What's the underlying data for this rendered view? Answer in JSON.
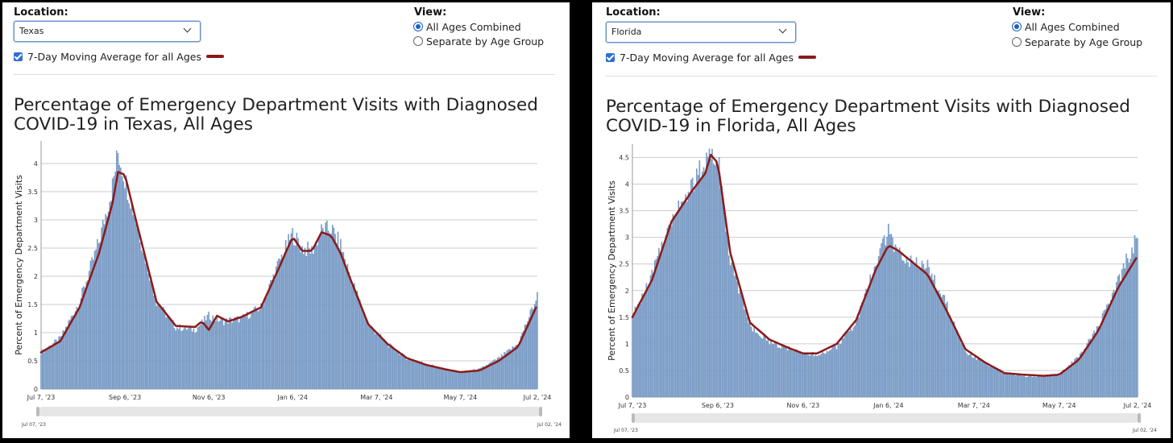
{
  "controls": {
    "location_label": "Location:",
    "view_label": "View:",
    "view_options": [
      "All Ages Combined",
      "Separate by Age Group"
    ],
    "moving_avg_label": "7-Day Moving Average for all Ages",
    "moving_avg_color": "#8b1a1a",
    "bar_color": "#7a9cc6"
  },
  "panels": [
    {
      "location": "Texas",
      "title_line1": "Percentage of Emergency Department Visits with Diagnosed",
      "title_line2": "COVID-19 in Texas, All Ages",
      "ylabel": "Percent of Emergency Department Visits",
      "xticks": [
        "Jul 7, '23",
        "Sep 6, '23",
        "Nov 6, '23",
        "Jan 6, '24",
        "Mar 7, '24",
        "May 7, '24",
        "Jul 2, '24"
      ],
      "range_start": "Jul 07, '23",
      "range_end": "Jul 02, '24"
    },
    {
      "location": "Florida",
      "title_line1": "Percentage of Emergency Department Visits with Diagnosed",
      "title_line2": "COVID-19 in Florida, All Ages",
      "ylabel": "Percent of Emergency Department Visits",
      "xticks": [
        "Jul 7, '23",
        "Sep 6, '23",
        "Nov 6, '23",
        "Jan 6, '24",
        "Mar 7, '24",
        "May 7, '24",
        "Jul 2, '24"
      ],
      "range_start": "Jul 07, '23",
      "range_end": "Jul 02, '24"
    }
  ],
  "chart_data": [
    {
      "type": "bar",
      "title": "Percentage of Emergency Department Visits with Diagnosed COVID-19 in Texas, All Ages",
      "xlabel": "",
      "ylabel": "Percent of Emergency Department Visits",
      "x_range": [
        "2023-07-07",
        "2024-07-02"
      ],
      "ylim": [
        0,
        4.4
      ],
      "yticks": [
        0,
        0.5,
        1,
        1.5,
        2,
        2.5,
        3,
        3.5,
        4
      ],
      "grid": true,
      "series": [
        {
          "kind": "bar",
          "dates": [
            "2023-07-07",
            "2023-07-21",
            "2023-08-04",
            "2023-08-18",
            "2023-08-28",
            "2023-09-01",
            "2023-09-06",
            "2023-09-15",
            "2023-09-29",
            "2023-10-13",
            "2023-10-27",
            "2023-11-06",
            "2023-11-16",
            "2023-11-30",
            "2023-12-14",
            "2023-12-28",
            "2024-01-06",
            "2024-01-13",
            "2024-01-20",
            "2024-01-27",
            "2024-02-03",
            "2024-02-10",
            "2024-02-17",
            "2024-03-01",
            "2024-03-15",
            "2024-03-29",
            "2024-04-12",
            "2024-04-26",
            "2024-05-07",
            "2024-05-21",
            "2024-06-04",
            "2024-06-18",
            "2024-07-02"
          ],
          "values": [
            0.65,
            0.9,
            1.55,
            2.6,
            3.6,
            4.2,
            3.75,
            2.9,
            1.55,
            1.1,
            1.05,
            1.3,
            1.2,
            1.25,
            1.45,
            2.3,
            2.75,
            2.5,
            2.45,
            2.8,
            2.85,
            2.55,
            2.0,
            1.15,
            0.8,
            0.55,
            0.45,
            0.35,
            0.3,
            0.35,
            0.55,
            0.8,
            1.65
          ]
        },
        {
          "kind": "line",
          "name": "7-Day Moving Average for all Ages",
          "dates": [
            "2023-07-07",
            "2023-07-21",
            "2023-08-04",
            "2023-08-18",
            "2023-08-28",
            "2023-09-01",
            "2023-09-06",
            "2023-09-15",
            "2023-09-29",
            "2023-10-13",
            "2023-10-27",
            "2023-11-01",
            "2023-11-06",
            "2023-11-12",
            "2023-11-20",
            "2023-11-30",
            "2023-12-14",
            "2023-12-28",
            "2024-01-06",
            "2024-01-13",
            "2024-01-20",
            "2024-01-27",
            "2024-02-03",
            "2024-02-10",
            "2024-02-17",
            "2024-03-01",
            "2024-03-15",
            "2024-03-29",
            "2024-04-12",
            "2024-04-26",
            "2024-05-07",
            "2024-05-21",
            "2024-06-04",
            "2024-06-18",
            "2024-07-02"
          ],
          "values": [
            0.65,
            0.85,
            1.45,
            2.4,
            3.3,
            3.85,
            3.8,
            2.9,
            1.55,
            1.12,
            1.1,
            1.2,
            1.05,
            1.3,
            1.2,
            1.28,
            1.45,
            2.2,
            2.7,
            2.45,
            2.45,
            2.78,
            2.72,
            2.4,
            1.95,
            1.15,
            0.8,
            0.55,
            0.43,
            0.35,
            0.3,
            0.33,
            0.5,
            0.75,
            1.5
          ]
        }
      ]
    },
    {
      "type": "bar",
      "title": "Percentage of Emergency Department Visits with Diagnosed COVID-19 in Florida, All Ages",
      "xlabel": "",
      "ylabel": "Percent of Emergency Department Visits",
      "x_range": [
        "2023-07-07",
        "2024-07-02"
      ],
      "ylim": [
        0,
        4.75
      ],
      "yticks": [
        0,
        0.5,
        1,
        1.5,
        2,
        2.5,
        3,
        3.5,
        4,
        4.5
      ],
      "grid": true,
      "series": [
        {
          "kind": "bar",
          "dates": [
            "2023-07-07",
            "2023-07-21",
            "2023-08-04",
            "2023-08-18",
            "2023-08-28",
            "2023-09-01",
            "2023-09-06",
            "2023-09-15",
            "2023-09-29",
            "2023-10-13",
            "2023-10-27",
            "2023-11-06",
            "2023-11-16",
            "2023-11-30",
            "2023-12-14",
            "2023-12-28",
            "2024-01-06",
            "2024-01-13",
            "2024-01-20",
            "2024-01-27",
            "2024-02-03",
            "2024-02-10",
            "2024-02-17",
            "2024-03-01",
            "2024-03-15",
            "2024-03-29",
            "2024-04-12",
            "2024-04-26",
            "2024-05-07",
            "2024-05-21",
            "2024-06-04",
            "2024-06-18",
            "2024-07-02"
          ],
          "values": [
            1.5,
            2.3,
            3.4,
            3.95,
            4.4,
            4.7,
            4.55,
            2.6,
            1.35,
            1.05,
            0.9,
            0.8,
            0.8,
            0.95,
            1.4,
            2.5,
            3.1,
            2.7,
            2.6,
            2.55,
            2.45,
            2.1,
            1.7,
            0.85,
            0.65,
            0.45,
            0.4,
            0.4,
            0.42,
            0.75,
            1.3,
            2.2,
            3.0
          ]
        },
        {
          "kind": "line",
          "name": "7-Day Moving Average for all Ages",
          "dates": [
            "2023-07-07",
            "2023-07-21",
            "2023-08-04",
            "2023-08-18",
            "2023-08-28",
            "2023-09-01",
            "2023-09-06",
            "2023-09-15",
            "2023-09-29",
            "2023-10-13",
            "2023-10-27",
            "2023-11-06",
            "2023-11-16",
            "2023-11-30",
            "2023-12-14",
            "2023-12-28",
            "2024-01-06",
            "2024-01-13",
            "2024-01-20",
            "2024-01-27",
            "2024-02-03",
            "2024-02-10",
            "2024-02-17",
            "2024-03-01",
            "2024-03-15",
            "2024-03-29",
            "2024-04-12",
            "2024-04-26",
            "2024-05-07",
            "2024-05-21",
            "2024-06-04",
            "2024-06-18",
            "2024-07-02"
          ],
          "values": [
            1.5,
            2.2,
            3.3,
            3.85,
            4.2,
            4.55,
            4.4,
            2.7,
            1.4,
            1.08,
            0.92,
            0.82,
            0.82,
            1.0,
            1.45,
            2.4,
            2.85,
            2.75,
            2.6,
            2.45,
            2.3,
            1.95,
            1.6,
            0.9,
            0.65,
            0.45,
            0.42,
            0.4,
            0.42,
            0.7,
            1.25,
            2.05,
            2.65
          ]
        }
      ]
    }
  ]
}
